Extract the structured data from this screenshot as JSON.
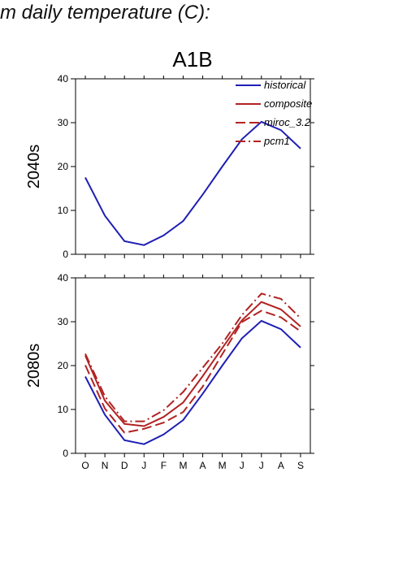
{
  "header": {
    "text": "m daily temperature (C):"
  },
  "colors": {
    "historical": "#1f1fb4",
    "future": "#b22222",
    "axis": "#000000"
  },
  "chart_data": {
    "type": "line",
    "title": "A1B",
    "categories": [
      "O",
      "N",
      "D",
      "J",
      "F",
      "M",
      "A",
      "M",
      "J",
      "J",
      "A",
      "S"
    ],
    "ylim": [
      0,
      40
    ],
    "yticks": [
      0,
      10,
      20,
      30,
      40
    ],
    "legend": {
      "placement": "top-right",
      "entries": [
        {
          "label": "historical",
          "color": "#1f1fb4",
          "dash": "solid"
        },
        {
          "label": "composite",
          "color": "#b22222",
          "dash": "solid"
        },
        {
          "label": "miroc_3.2",
          "color": "#b22222",
          "dash": "dashed"
        },
        {
          "label": "pcm1",
          "color": "#b22222",
          "dash": "dashdot"
        }
      ]
    },
    "panels": [
      {
        "row_label": "2040s",
        "series": [
          {
            "name": "historical",
            "values": [
              17.5,
              8.8,
              3.0,
              2.1,
              4.3,
              7.6,
              13.6,
              20.0,
              26.2,
              30.2,
              28.3,
              24.1
            ]
          }
        ]
      },
      {
        "row_label": "2080s",
        "series": [
          {
            "name": "historical",
            "values": [
              17.5,
              8.8,
              3.0,
              2.1,
              4.3,
              7.6,
              13.6,
              20.0,
              26.2,
              30.2,
              28.3,
              24.1
            ]
          },
          {
            "name": "composite",
            "values": [
              22.3,
              12.0,
              6.7,
              6.2,
              8.3,
              11.6,
              17.6,
              24.0,
              30.3,
              34.5,
              32.8,
              28.9
            ]
          },
          {
            "name": "miroc_3.2",
            "values": [
              20.1,
              10.2,
              4.7,
              5.6,
              7.0,
              9.4,
              15.2,
              22.6,
              29.9,
              32.5,
              31.0,
              27.8
            ]
          },
          {
            "name": "pcm1",
            "values": [
              22.7,
              13.0,
              7.3,
              7.3,
              9.8,
              14.0,
              19.5,
              25.0,
              31.5,
              36.4,
              35.2,
              30.8
            ]
          }
        ]
      }
    ]
  }
}
